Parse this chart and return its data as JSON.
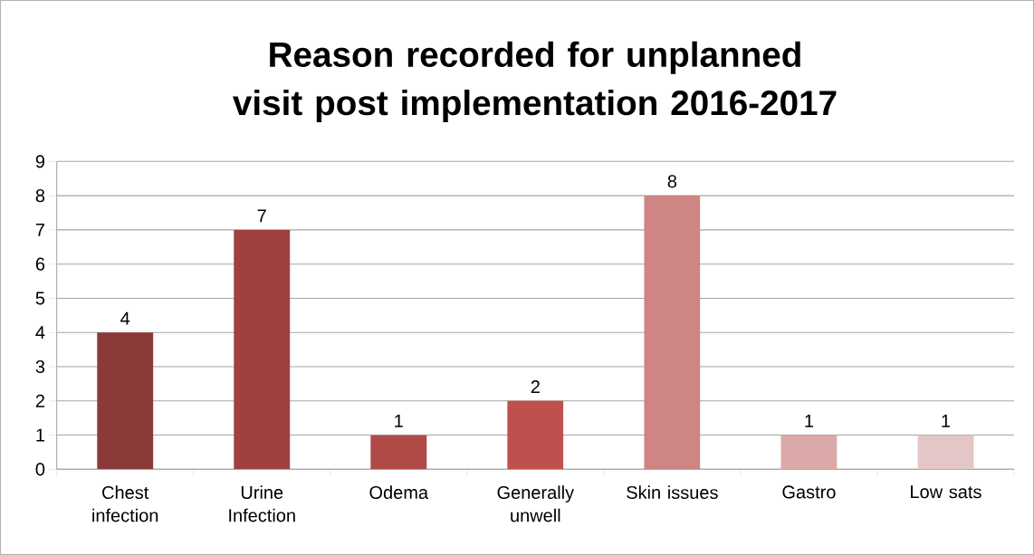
{
  "chart_data": {
    "type": "bar",
    "title": "Reason recorded for unplanned visit post implementation 2016-2017",
    "categories": [
      "Chest infection",
      "Urine Infection",
      "Odema",
      "Generally unwell",
      "Skin issues",
      "Gastro",
      "Low sats"
    ],
    "values": [
      4,
      7,
      1,
      2,
      8,
      1,
      1
    ],
    "colors": [
      "#8b3a3a",
      "#9e413f",
      "#b04a47",
      "#c0504d",
      "#cf8583",
      "#dba9a8",
      "#e5c6c6"
    ],
    "ylim": [
      0,
      9
    ],
    "yticks": [
      0,
      1,
      2,
      3,
      4,
      5,
      6,
      7,
      8,
      9
    ],
    "grid": "y",
    "data_labels": true
  }
}
